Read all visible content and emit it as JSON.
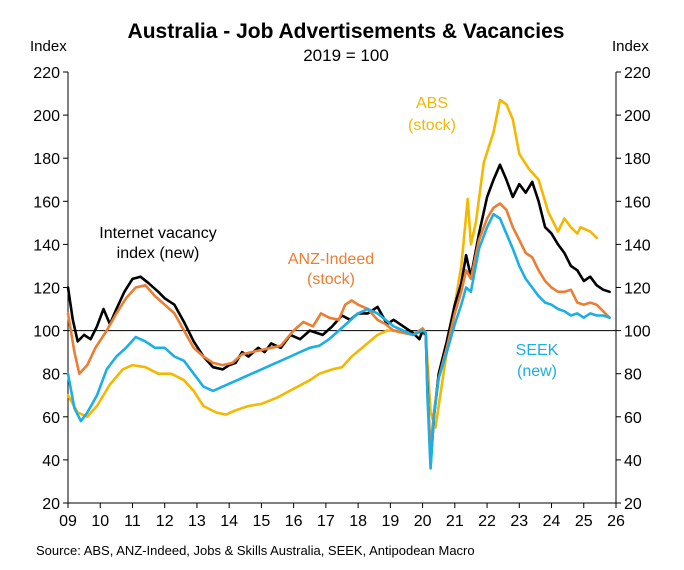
{
  "chart_data": {
    "type": "line",
    "title": "Australia - Job Advertisements & Vacancies",
    "subtitle": "2019 = 100",
    "ylabel_left": "Index",
    "ylabel_right": "Index",
    "xlabel": "",
    "xlim": [
      2009,
      2026
    ],
    "ylim": [
      20,
      220
    ],
    "y_ticks": [
      20,
      40,
      60,
      80,
      100,
      120,
      140,
      160,
      180,
      200,
      220
    ],
    "x_ticks": [
      2009,
      2010,
      2011,
      2012,
      2013,
      2014,
      2015,
      2016,
      2017,
      2018,
      2019,
      2020,
      2021,
      2022,
      2023,
      2024,
      2025,
      2026
    ],
    "x_tick_labels": [
      "09",
      "10",
      "11",
      "12",
      "13",
      "14",
      "15",
      "16",
      "17",
      "18",
      "19",
      "20",
      "21",
      "22",
      "23",
      "24",
      "25",
      "26"
    ],
    "reference_line": 100,
    "grid": false,
    "source": "Source: ABS, ANZ-Indeed, Jobs & Skills Australia, SEEK, Antipodean Macro",
    "annotations": [
      {
        "text": "Internet vacancy",
        "color": "#000000"
      },
      {
        "text": "index (new)",
        "color": "#000000"
      },
      {
        "text": "ANZ-Indeed",
        "color": "#ED7D31"
      },
      {
        "text": "(stock)",
        "color": "#ED7D31"
      },
      {
        "text": "ABS",
        "color": "#F5B800"
      },
      {
        "text": "(stock)",
        "color": "#F5B800"
      },
      {
        "text": "SEEK",
        "color": "#1AAFE6"
      },
      {
        "text": "(new)",
        "color": "#1AAFE6"
      }
    ],
    "series": [
      {
        "id": "abs",
        "color": "#F5B800",
        "points": [
          [
            2009.0,
            70
          ],
          [
            2009.3,
            62
          ],
          [
            2009.6,
            60
          ],
          [
            2009.9,
            65
          ],
          [
            2010.3,
            75
          ],
          [
            2010.7,
            82
          ],
          [
            2011.0,
            84
          ],
          [
            2011.4,
            83
          ],
          [
            2011.8,
            80
          ],
          [
            2012.2,
            80
          ],
          [
            2012.6,
            77
          ],
          [
            2012.9,
            72
          ],
          [
            2013.2,
            65
          ],
          [
            2013.6,
            62
          ],
          [
            2013.9,
            61
          ],
          [
            2014.2,
            63
          ],
          [
            2014.6,
            65
          ],
          [
            2015.0,
            66
          ],
          [
            2015.5,
            69
          ],
          [
            2016.0,
            73
          ],
          [
            2016.5,
            77
          ],
          [
            2016.8,
            80
          ],
          [
            2017.2,
            82
          ],
          [
            2017.5,
            83
          ],
          [
            2017.8,
            88
          ],
          [
            2018.2,
            93
          ],
          [
            2018.6,
            98
          ],
          [
            2018.9,
            100
          ],
          [
            2019.2,
            100
          ],
          [
            2019.6,
            99
          ],
          [
            2019.9,
            99
          ],
          [
            2020.1,
            98
          ],
          [
            2020.25,
            62
          ],
          [
            2020.4,
            55
          ],
          [
            2020.6,
            75
          ],
          [
            2020.8,
            95
          ],
          [
            2021.0,
            112
          ],
          [
            2021.2,
            130
          ],
          [
            2021.4,
            161
          ],
          [
            2021.5,
            140
          ],
          [
            2021.65,
            150
          ],
          [
            2021.9,
            178
          ],
          [
            2022.2,
            192
          ],
          [
            2022.4,
            207
          ],
          [
            2022.6,
            205
          ],
          [
            2022.8,
            198
          ],
          [
            2023.0,
            182
          ],
          [
            2023.3,
            175
          ],
          [
            2023.6,
            170
          ],
          [
            2023.9,
            155
          ],
          [
            2024.2,
            146
          ],
          [
            2024.4,
            152
          ],
          [
            2024.6,
            148
          ],
          [
            2024.8,
            145
          ],
          [
            2024.9,
            148
          ],
          [
            2025.2,
            146
          ],
          [
            2025.4,
            143
          ]
        ]
      },
      {
        "id": "internet_vacancy",
        "color": "#000000",
        "points": [
          [
            2009.0,
            120
          ],
          [
            2009.15,
            105
          ],
          [
            2009.3,
            95
          ],
          [
            2009.5,
            98
          ],
          [
            2009.7,
            96
          ],
          [
            2009.9,
            102
          ],
          [
            2010.1,
            110
          ],
          [
            2010.3,
            103
          ],
          [
            2010.5,
            110
          ],
          [
            2010.75,
            118
          ],
          [
            2011.0,
            124
          ],
          [
            2011.25,
            125
          ],
          [
            2011.5,
            122
          ],
          [
            2011.8,
            118
          ],
          [
            2012.0,
            115
          ],
          [
            2012.3,
            112
          ],
          [
            2012.6,
            104
          ],
          [
            2012.9,
            95
          ],
          [
            2013.2,
            88
          ],
          [
            2013.5,
            83
          ],
          [
            2013.8,
            82
          ],
          [
            2014.0,
            84
          ],
          [
            2014.2,
            85
          ],
          [
            2014.4,
            90
          ],
          [
            2014.6,
            88
          ],
          [
            2014.9,
            92
          ],
          [
            2015.1,
            90
          ],
          [
            2015.3,
            94
          ],
          [
            2015.6,
            92
          ],
          [
            2015.9,
            98
          ],
          [
            2016.2,
            96
          ],
          [
            2016.5,
            100
          ],
          [
            2016.9,
            98
          ],
          [
            2017.2,
            102
          ],
          [
            2017.5,
            107
          ],
          [
            2017.75,
            105
          ],
          [
            2018.0,
            108
          ],
          [
            2018.3,
            108
          ],
          [
            2018.6,
            111
          ],
          [
            2018.9,
            103
          ],
          [
            2019.1,
            105
          ],
          [
            2019.4,
            102
          ],
          [
            2019.7,
            99
          ],
          [
            2019.9,
            96
          ],
          [
            2020.0,
            100
          ],
          [
            2020.1,
            98
          ],
          [
            2020.15,
            75
          ],
          [
            2020.25,
            38
          ],
          [
            2020.35,
            60
          ],
          [
            2020.5,
            80
          ],
          [
            2020.75,
            95
          ],
          [
            2021.0,
            112
          ],
          [
            2021.2,
            122
          ],
          [
            2021.35,
            135
          ],
          [
            2021.5,
            125
          ],
          [
            2021.75,
            145
          ],
          [
            2022.0,
            162
          ],
          [
            2022.2,
            170
          ],
          [
            2022.4,
            177
          ],
          [
            2022.6,
            170
          ],
          [
            2022.8,
            162
          ],
          [
            2023.0,
            168
          ],
          [
            2023.2,
            164
          ],
          [
            2023.4,
            169
          ],
          [
            2023.6,
            160
          ],
          [
            2023.8,
            148
          ],
          [
            2024.0,
            145
          ],
          [
            2024.2,
            140
          ],
          [
            2024.4,
            136
          ],
          [
            2024.6,
            130
          ],
          [
            2024.8,
            128
          ],
          [
            2025.0,
            123
          ],
          [
            2025.2,
            125
          ],
          [
            2025.4,
            121
          ],
          [
            2025.6,
            119
          ],
          [
            2025.8,
            118
          ]
        ]
      },
      {
        "id": "anz_indeed",
        "color": "#ED7D31",
        "points": [
          [
            2009.0,
            108
          ],
          [
            2009.2,
            90
          ],
          [
            2009.35,
            80
          ],
          [
            2009.6,
            84
          ],
          [
            2009.85,
            92
          ],
          [
            2010.2,
            100
          ],
          [
            2010.5,
            108
          ],
          [
            2010.8,
            115
          ],
          [
            2011.1,
            120
          ],
          [
            2011.4,
            121
          ],
          [
            2011.7,
            116
          ],
          [
            2012.0,
            112
          ],
          [
            2012.3,
            108
          ],
          [
            2012.6,
            100
          ],
          [
            2012.9,
            92
          ],
          [
            2013.2,
            88
          ],
          [
            2013.5,
            85
          ],
          [
            2013.8,
            84
          ],
          [
            2014.1,
            85
          ],
          [
            2014.4,
            89
          ],
          [
            2014.7,
            90
          ],
          [
            2015.0,
            91
          ],
          [
            2015.3,
            92
          ],
          [
            2015.6,
            93
          ],
          [
            2016.0,
            100
          ],
          [
            2016.3,
            104
          ],
          [
            2016.6,
            102
          ],
          [
            2016.85,
            108
          ],
          [
            2017.1,
            106
          ],
          [
            2017.4,
            105
          ],
          [
            2017.6,
            112
          ],
          [
            2017.8,
            114
          ],
          [
            2018.0,
            112
          ],
          [
            2018.3,
            110
          ],
          [
            2018.6,
            105
          ],
          [
            2018.85,
            103
          ],
          [
            2019.1,
            100
          ],
          [
            2019.4,
            99
          ],
          [
            2019.7,
            98
          ],
          [
            2020.0,
            101
          ],
          [
            2020.1,
            99
          ],
          [
            2020.15,
            72
          ],
          [
            2020.25,
            45
          ],
          [
            2020.35,
            62
          ],
          [
            2020.5,
            78
          ],
          [
            2020.75,
            92
          ],
          [
            2021.0,
            108
          ],
          [
            2021.2,
            118
          ],
          [
            2021.35,
            128
          ],
          [
            2021.5,
            124
          ],
          [
            2021.75,
            142
          ],
          [
            2022.0,
            152
          ],
          [
            2022.2,
            157
          ],
          [
            2022.4,
            159
          ],
          [
            2022.6,
            156
          ],
          [
            2022.8,
            148
          ],
          [
            2023.0,
            142
          ],
          [
            2023.2,
            136
          ],
          [
            2023.4,
            134
          ],
          [
            2023.6,
            128
          ],
          [
            2023.8,
            123
          ],
          [
            2024.0,
            120
          ],
          [
            2024.2,
            118
          ],
          [
            2024.4,
            118
          ],
          [
            2024.6,
            119
          ],
          [
            2024.8,
            113
          ],
          [
            2025.0,
            112
          ],
          [
            2025.2,
            113
          ],
          [
            2025.4,
            112
          ],
          [
            2025.6,
            109
          ],
          [
            2025.8,
            106
          ]
        ]
      },
      {
        "id": "seek",
        "color": "#1AAFE6",
        "points": [
          [
            2009.0,
            80
          ],
          [
            2009.2,
            64
          ],
          [
            2009.4,
            58
          ],
          [
            2009.6,
            62
          ],
          [
            2009.9,
            70
          ],
          [
            2010.2,
            82
          ],
          [
            2010.5,
            88
          ],
          [
            2010.8,
            92
          ],
          [
            2011.1,
            97
          ],
          [
            2011.4,
            95
          ],
          [
            2011.7,
            92
          ],
          [
            2012.0,
            92
          ],
          [
            2012.3,
            88
          ],
          [
            2012.6,
            86
          ],
          [
            2012.9,
            80
          ],
          [
            2013.2,
            74
          ],
          [
            2013.5,
            72
          ],
          [
            2013.8,
            74
          ],
          [
            2014.1,
            76
          ],
          [
            2014.4,
            78
          ],
          [
            2014.7,
            80
          ],
          [
            2015.0,
            82
          ],
          [
            2015.3,
            84
          ],
          [
            2015.6,
            86
          ],
          [
            2015.9,
            88
          ],
          [
            2016.2,
            90
          ],
          [
            2016.5,
            92
          ],
          [
            2016.8,
            93
          ],
          [
            2017.1,
            96
          ],
          [
            2017.4,
            100
          ],
          [
            2017.7,
            104
          ],
          [
            2018.0,
            108
          ],
          [
            2018.3,
            110
          ],
          [
            2018.6,
            108
          ],
          [
            2018.85,
            105
          ],
          [
            2019.1,
            102
          ],
          [
            2019.4,
            100
          ],
          [
            2019.7,
            98
          ],
          [
            2020.0,
            100
          ],
          [
            2020.1,
            99
          ],
          [
            2020.15,
            70
          ],
          [
            2020.25,
            36
          ],
          [
            2020.35,
            60
          ],
          [
            2020.5,
            78
          ],
          [
            2020.75,
            90
          ],
          [
            2021.0,
            103
          ],
          [
            2021.2,
            112
          ],
          [
            2021.35,
            120
          ],
          [
            2021.5,
            118
          ],
          [
            2021.75,
            138
          ],
          [
            2022.0,
            148
          ],
          [
            2022.2,
            154
          ],
          [
            2022.4,
            152
          ],
          [
            2022.6,
            145
          ],
          [
            2022.8,
            138
          ],
          [
            2023.0,
            130
          ],
          [
            2023.2,
            124
          ],
          [
            2023.4,
            120
          ],
          [
            2023.6,
            116
          ],
          [
            2023.8,
            113
          ],
          [
            2024.0,
            112
          ],
          [
            2024.2,
            110
          ],
          [
            2024.4,
            109
          ],
          [
            2024.6,
            107
          ],
          [
            2024.8,
            108
          ],
          [
            2025.0,
            106
          ],
          [
            2025.2,
            108
          ],
          [
            2025.4,
            107
          ],
          [
            2025.6,
            107
          ],
          [
            2025.8,
            106
          ]
        ]
      }
    ]
  }
}
